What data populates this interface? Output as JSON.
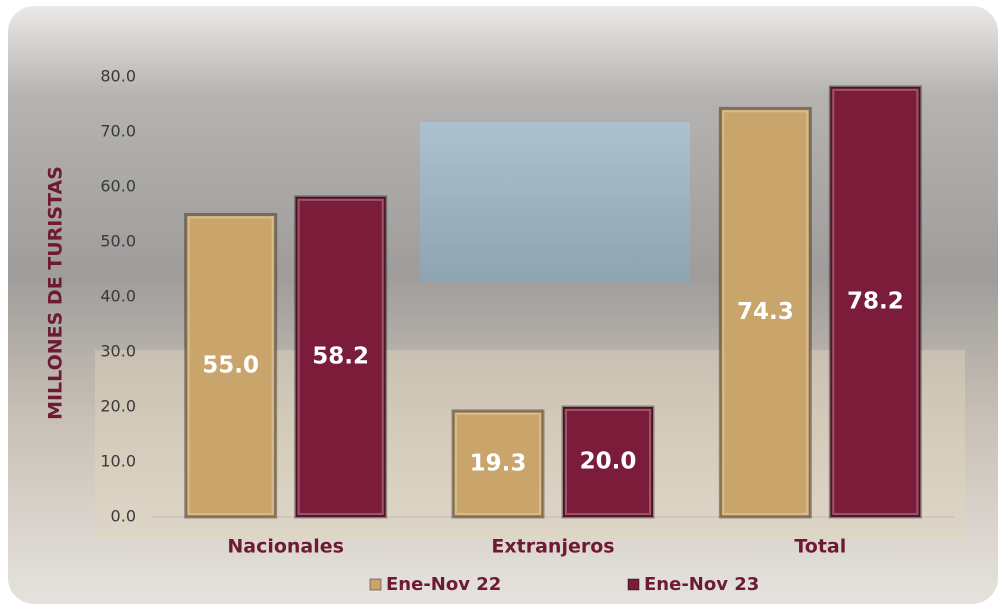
{
  "chart_data": {
    "type": "bar",
    "y_label": "MILLONES DE TURISTAS",
    "categories": [
      "Nacionales",
      "Extranjeros",
      "Total"
    ],
    "series": [
      {
        "name": "Ene-Nov 22",
        "color": "#c9a46b",
        "values": [
          55.0,
          19.3,
          74.3
        ],
        "value_labels": [
          "55.0",
          "19.3",
          "74.3"
        ]
      },
      {
        "name": "Ene-Nov 23",
        "color": "#7a1c3a",
        "values": [
          58.2,
          20.0,
          78.2
        ],
        "value_labels": [
          "58.2",
          "20.0",
          "78.2"
        ]
      }
    ],
    "ylim": [
      0,
      80
    ],
    "yticks": [
      {
        "value": 0,
        "label": "0.0"
      },
      {
        "value": 10,
        "label": "10.0"
      },
      {
        "value": 20,
        "label": "20.0"
      },
      {
        "value": 30,
        "label": "30.0"
      },
      {
        "value": 40,
        "label": "40.0"
      },
      {
        "value": 50,
        "label": "50.0"
      },
      {
        "value": 60,
        "label": "60.0"
      },
      {
        "value": 70,
        "label": "70.0"
      },
      {
        "value": 80,
        "label": "80.0"
      }
    ],
    "legend": "bottom"
  }
}
